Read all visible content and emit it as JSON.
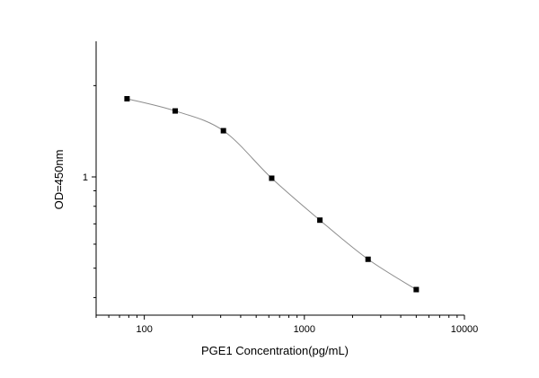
{
  "chart_data": {
    "type": "scatter",
    "title": "",
    "xlabel": "PGE1 Concentration(pg/mL)",
    "ylabel": "OD=450nm",
    "x_scale": "log",
    "y_scale": "log",
    "xlim": [
      50,
      10000
    ],
    "ylim": [
      0.35,
      2.8
    ],
    "x_ticks": [
      {
        "value": 100,
        "label": "100"
      },
      {
        "value": 1000,
        "label": "1000"
      },
      {
        "value": 10000,
        "label": "10000"
      }
    ],
    "y_ticks": [
      {
        "value": 1,
        "label": "1"
      }
    ],
    "grid": false,
    "series": [
      {
        "x": [
          78,
          156,
          312,
          625,
          1250,
          2500,
          5000
        ],
        "y": [
          1.81,
          1.65,
          1.42,
          0.99,
          0.72,
          0.535,
          0.425
        ],
        "marker": "square",
        "color": "#000000",
        "line_color": "#8c8c8c",
        "connected": true
      }
    ]
  }
}
